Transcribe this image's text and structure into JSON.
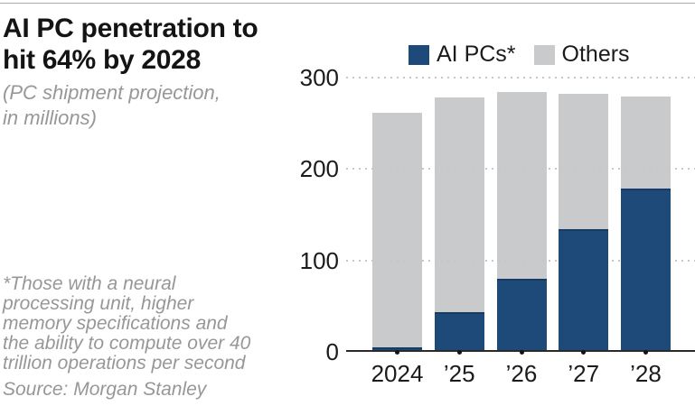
{
  "header": {
    "title_line1": "AI PC penetration to",
    "title_line2": "hit 64% by 2028",
    "subtitle_line1": "(PC shipment projection,",
    "subtitle_line2": "in millions)"
  },
  "footnote": {
    "lines": [
      "*Those with a neural",
      "processing unit, higher",
      "memory specifications and",
      "the ability to compute over 40",
      "trillion operations per second"
    ],
    "source": "Source: Morgan Stanley"
  },
  "chart_data": {
    "type": "bar",
    "stacked": true,
    "title": "AI PC penetration to hit 64% by 2028",
    "subtitle": "(PC shipment projection, in millions)",
    "categories": [
      "2024",
      "’25",
      "’26",
      "’27",
      "’28"
    ],
    "series": [
      {
        "name": "AI PCs*",
        "color": "#1d4a78",
        "values": [
          5,
          43,
          80,
          134,
          179
        ]
      },
      {
        "name": "Others",
        "color": "#c9cacc",
        "values": [
          257,
          235,
          204,
          148,
          100
        ]
      }
    ],
    "totals": [
      262,
      278,
      284,
      282,
      279
    ],
    "xlabel": "",
    "ylabel": "",
    "yticks": [
      0,
      100,
      200,
      300
    ],
    "ylim": [
      0,
      300
    ],
    "gridlines": "dotted",
    "legend_position": "top"
  },
  "colors": {
    "ai_pcs": "#1d4a78",
    "ai_pcs_edge": "#173c63",
    "others": "#c9cacc",
    "grid": "#c7c7c7",
    "axis": "#2a2a2a",
    "text": "#1b1b1b",
    "muted_text": "#97979a",
    "background": "#ffffff"
  }
}
